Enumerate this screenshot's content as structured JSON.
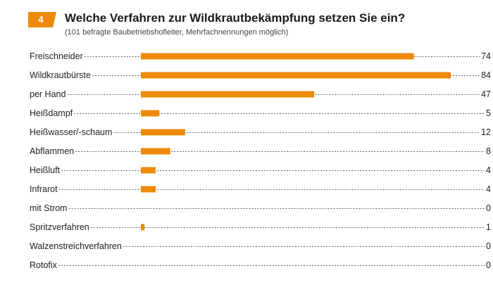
{
  "header": {
    "badge": "4",
    "title": "Welche Verfahren zur Wildkrautbekämpfung setzen Sie ein?",
    "subtitle": "(101 befragte Baubetriebshofleiter, Mehrfachnennungen möglich)"
  },
  "colors": {
    "accent": "#ee8a0a"
  },
  "chart_data": {
    "type": "bar",
    "orientation": "horizontal",
    "title": "Welche Verfahren zur Wildkrautbekämpfung setzen Sie ein?",
    "subtitle": "(101 befragte Baubetriebshofleiter, Mehrfachnennungen möglich)",
    "categories": [
      "Freischneider",
      "Wildkrautbürste",
      "per Hand",
      "Heißdampf",
      "Heißwasser/-schaum",
      "Abflammen",
      "Heißluft",
      "Infrarot",
      "mit Strom",
      "Spritzverfahren",
      "Walzenstreichverfahren",
      "Rotofix"
    ],
    "values": [
      74,
      84,
      47,
      5,
      12,
      8,
      4,
      4,
      0,
      1,
      0,
      0
    ],
    "xlabel": "",
    "ylabel": "",
    "xlim": [
      0,
      84
    ],
    "grid": false,
    "legend": "none"
  }
}
